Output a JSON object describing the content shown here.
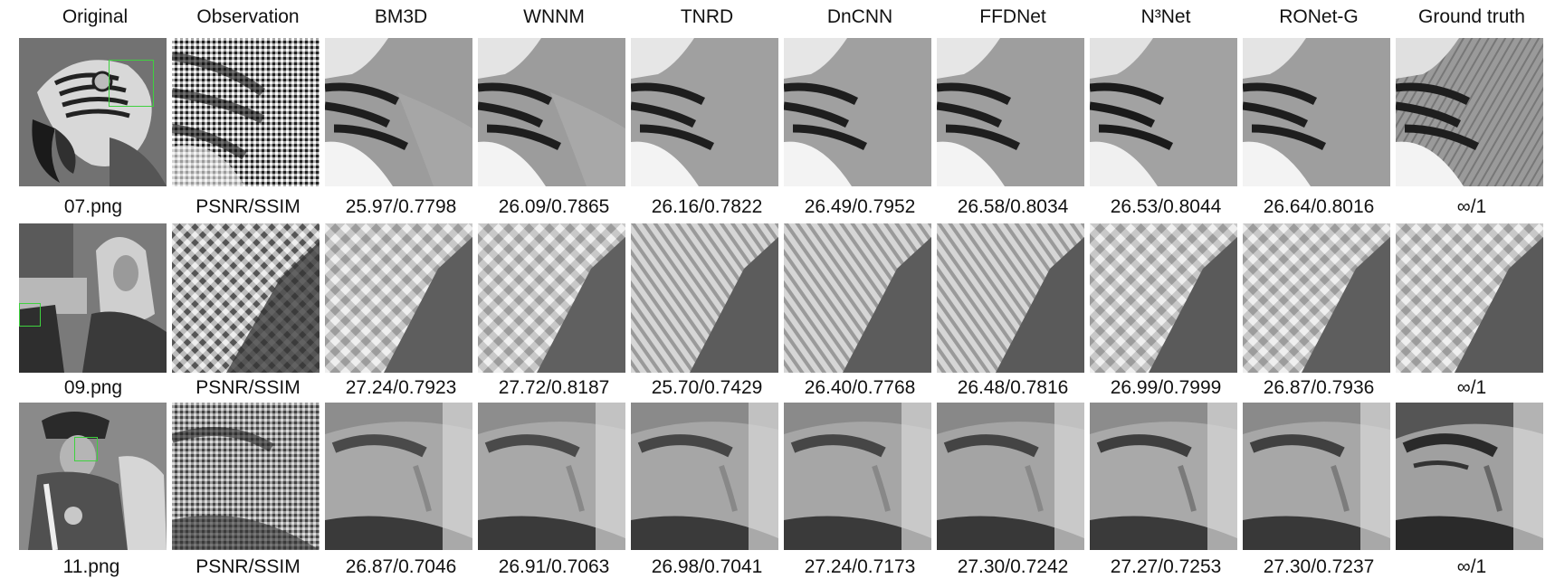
{
  "columns": [
    "Original",
    "Observation",
    "BM3D",
    "WNNM",
    "TNRD",
    "DnCNN",
    "FFDNet",
    "N³Net",
    "RONet-G",
    "Ground truth"
  ],
  "rows": [
    {
      "image": "07.png",
      "metric": "PSNR/SSIM",
      "scores": [
        "25.97/0.7798",
        "26.09/0.7865",
        "26.16/0.7822",
        "26.49/0.7952",
        "26.58/0.8034",
        "26.53/0.8044",
        "26.64/0.8016",
        "∞/1"
      ]
    },
    {
      "image": "09.png",
      "metric": "PSNR/SSIM",
      "scores": [
        "27.24/0.7923",
        "27.72/0.8187",
        "25.70/0.7429",
        "26.40/0.7768",
        "26.48/0.7816",
        "26.99/0.7999",
        "26.87/0.7936",
        "∞/1"
      ]
    },
    {
      "image": "11.png",
      "metric": "PSNR/SSIM",
      "scores": [
        "26.87/0.7046",
        "26.91/0.7063",
        "26.98/0.7041",
        "27.24/0.7173",
        "27.30/0.7242",
        "27.27/0.7253",
        "27.30/0.7237",
        "∞/1"
      ]
    }
  ],
  "colors": {
    "highlight_box": "#3fd13f",
    "text": "#111111",
    "background": "#ffffff"
  }
}
